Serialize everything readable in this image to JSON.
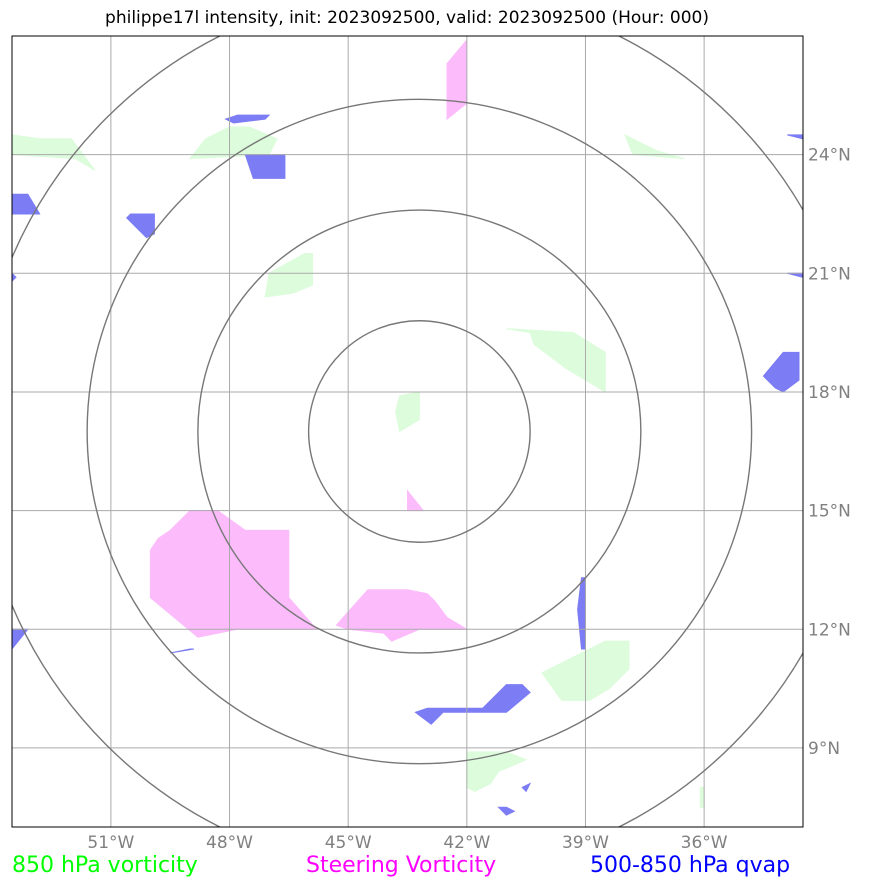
{
  "title": "philippe17l intensity, init: 2023092500, valid: 2023092500 (Hour: 000)",
  "map": {
    "lon_range": [
      -53.5,
      -33.5
    ],
    "lat_range": [
      7.0,
      27.0
    ],
    "lon_ticks": [
      {
        "lon": -51,
        "label": "51°W"
      },
      {
        "lon": -48,
        "label": "48°W"
      },
      {
        "lon": -45,
        "label": "45°W"
      },
      {
        "lon": -42,
        "label": "42°W"
      },
      {
        "lon": -39,
        "label": "39°W"
      },
      {
        "lon": -36,
        "label": "36°W"
      }
    ],
    "lat_ticks": [
      {
        "lat": 9,
        "label": "9°N"
      },
      {
        "lat": 12,
        "label": "12°N"
      },
      {
        "lat": 15,
        "label": "15°N"
      },
      {
        "lat": 18,
        "label": "18°N"
      },
      {
        "lat": 21,
        "label": "21°N"
      },
      {
        "lat": 24,
        "label": "24°N"
      }
    ],
    "grid": true,
    "range_rings": {
      "center": {
        "lon": -43.2,
        "lat": 17.0
      },
      "radii_deg": [
        2.8,
        5.6,
        8.4,
        11.2
      ]
    }
  },
  "legend": {
    "green": {
      "label": "850 hPa vorticity",
      "color": "#00ff00"
    },
    "pink": {
      "label": "Steering Vorticity",
      "color": "#ff00ff"
    },
    "blue": {
      "label": "500-850 hPa qvap",
      "color": "#0000ff"
    }
  },
  "colors": {
    "green_fill": "#dcfcdc",
    "pink_fill": "#fcbcfc",
    "blue_fill": "#7c7cf4",
    "grid": "#aaaaaa",
    "ring": "#777777",
    "tick_label": "#808080"
  },
  "fields": {
    "green": [
      [
        [
          -48.0,
          24.7
        ],
        [
          -47.5,
          24.7
        ],
        [
          -46.8,
          24.4
        ],
        [
          -47.0,
          24.0
        ],
        [
          -49.0,
          23.9
        ],
        [
          -48.6,
          24.4
        ]
      ],
      [
        [
          -53.5,
          24.5
        ],
        [
          -52.8,
          24.4
        ],
        [
          -52.0,
          24.4
        ],
        [
          -51.4,
          23.6
        ],
        [
          -51.9,
          23.9
        ],
        [
          -53.5,
          24.0
        ]
      ],
      [
        [
          -38.0,
          24.5
        ],
        [
          -37.8,
          24.0
        ],
        [
          -36.5,
          23.9
        ],
        [
          -37.2,
          24.1
        ]
      ],
      [
        [
          -46.1,
          21.5
        ],
        [
          -45.9,
          21.5
        ],
        [
          -45.9,
          20.7
        ],
        [
          -46.4,
          20.5
        ],
        [
          -47.1,
          20.4
        ],
        [
          -47.0,
          21.0
        ]
      ],
      [
        [
          -41.0,
          19.6
        ],
        [
          -39.3,
          19.5
        ],
        [
          -38.5,
          19.0
        ],
        [
          -38.5,
          18.0
        ],
        [
          -39.5,
          18.6
        ],
        [
          -40.3,
          19.2
        ],
        [
          -40.4,
          19.5
        ]
      ],
      [
        [
          -43.7,
          17.9
        ],
        [
          -43.2,
          18.0
        ],
        [
          -43.2,
          17.3
        ],
        [
          -43.7,
          17.0
        ],
        [
          -43.8,
          17.5
        ]
      ],
      [
        [
          -38.5,
          11.7
        ],
        [
          -37.9,
          11.7
        ],
        [
          -37.9,
          11.0
        ],
        [
          -38.4,
          10.5
        ],
        [
          -38.9,
          10.2
        ],
        [
          -39.6,
          10.2
        ],
        [
          -40.1,
          10.9
        ],
        [
          -39.3,
          11.3
        ]
      ],
      [
        [
          -42.0,
          8.9
        ],
        [
          -41.0,
          8.9
        ],
        [
          -40.5,
          8.7
        ],
        [
          -41.2,
          8.4
        ],
        [
          -41.4,
          8.1
        ],
        [
          -41.8,
          7.9
        ],
        [
          -42.0,
          8.0
        ]
      ],
      [
        [
          -36.1,
          8.0
        ],
        [
          -36.0,
          8.0
        ],
        [
          -36.0,
          7.5
        ],
        [
          -36.1,
          7.5
        ]
      ]
    ],
    "pink": [
      [
        [
          -42.5,
          26.3
        ],
        [
          -42.0,
          26.9
        ],
        [
          -42.0,
          25.3
        ],
        [
          -42.5,
          24.9
        ]
      ],
      [
        [
          -49.0,
          15.0
        ],
        [
          -48.3,
          15.0
        ],
        [
          -47.6,
          14.5
        ],
        [
          -46.5,
          14.5
        ],
        [
          -46.5,
          12.8
        ],
        [
          -45.8,
          12.0
        ],
        [
          -47.8,
          12.0
        ],
        [
          -48.8,
          11.8
        ],
        [
          -50.0,
          12.8
        ],
        [
          -50.0,
          14.0
        ],
        [
          -49.8,
          14.3
        ],
        [
          -49.5,
          14.5
        ]
      ],
      [
        [
          -44.5,
          13.0
        ],
        [
          -43.5,
          13.0
        ],
        [
          -43.0,
          12.9
        ],
        [
          -42.8,
          12.7
        ],
        [
          -42.5,
          12.3
        ],
        [
          -42.0,
          12.0
        ],
        [
          -43.2,
          12.0
        ],
        [
          -43.9,
          11.7
        ],
        [
          -44.1,
          11.9
        ],
        [
          -45.0,
          12.0
        ],
        [
          -45.3,
          12.1
        ]
      ],
      [
        [
          -43.5,
          15.5
        ],
        [
          -43.1,
          15.0
        ],
        [
          -43.5,
          15.0
        ]
      ]
    ],
    "blue": [
      [
        [
          -47.6,
          24.0
        ],
        [
          -46.6,
          24.0
        ],
        [
          -46.6,
          23.4
        ],
        [
          -47.4,
          23.4
        ]
      ],
      [
        [
          -53.5,
          23.0
        ],
        [
          -53.1,
          23.0
        ],
        [
          -52.8,
          22.5
        ],
        [
          -53.5,
          22.5
        ]
      ],
      [
        [
          -50.5,
          22.5
        ],
        [
          -49.9,
          22.5
        ],
        [
          -49.9,
          22.0
        ],
        [
          -50.1,
          21.9
        ],
        [
          -50.6,
          22.4
        ]
      ],
      [
        [
          -47.0,
          25.0
        ],
        [
          -47.1,
          24.9
        ],
        [
          -47.9,
          24.8
        ],
        [
          -48.1,
          24.9
        ],
        [
          -47.8,
          25.0
        ]
      ],
      [
        [
          -34.0,
          19.0
        ],
        [
          -33.6,
          19.0
        ],
        [
          -33.6,
          18.3
        ],
        [
          -34.0,
          18.0
        ],
        [
          -34.2,
          18.1
        ],
        [
          -34.5,
          18.4
        ]
      ],
      [
        [
          -39.1,
          13.3
        ],
        [
          -39.0,
          13.3
        ],
        [
          -39.0,
          11.5
        ],
        [
          -39.1,
          11.5
        ],
        [
          -39.2,
          12.5
        ]
      ],
      [
        [
          -41.0,
          10.6
        ],
        [
          -40.6,
          10.6
        ],
        [
          -40.4,
          10.4
        ],
        [
          -41.0,
          9.9
        ],
        [
          -42.0,
          9.9
        ],
        [
          -42.6,
          9.9
        ],
        [
          -42.9,
          9.6
        ],
        [
          -43.3,
          9.9
        ],
        [
          -43.0,
          10.0
        ],
        [
          -42.2,
          10.0
        ],
        [
          -41.6,
          10.0
        ]
      ],
      [
        [
          -53.5,
          12.0
        ],
        [
          -53.1,
          12.0
        ],
        [
          -53.5,
          11.5
        ]
      ],
      [
        [
          -49.0,
          11.5
        ],
        [
          -48.9,
          11.5
        ],
        [
          -49.5,
          11.4
        ]
      ],
      [
        [
          -40.6,
          8.0
        ],
        [
          -40.5,
          7.9
        ],
        [
          -40.4,
          8.1
        ]
      ],
      [
        [
          -41.2,
          7.5
        ],
        [
          -41.0,
          7.5
        ],
        [
          -40.8,
          7.4
        ],
        [
          -41.0,
          7.3
        ]
      ],
      [
        [
          -53.5,
          21.0
        ],
        [
          -53.4,
          20.9
        ],
        [
          -53.5,
          20.8
        ]
      ],
      [
        [
          -33.5,
          21.0
        ],
        [
          -33.9,
          21.0
        ],
        [
          -33.5,
          20.9
        ]
      ],
      [
        [
          -33.5,
          24.5
        ],
        [
          -33.9,
          24.5
        ],
        [
          -33.5,
          24.4
        ]
      ]
    ]
  }
}
